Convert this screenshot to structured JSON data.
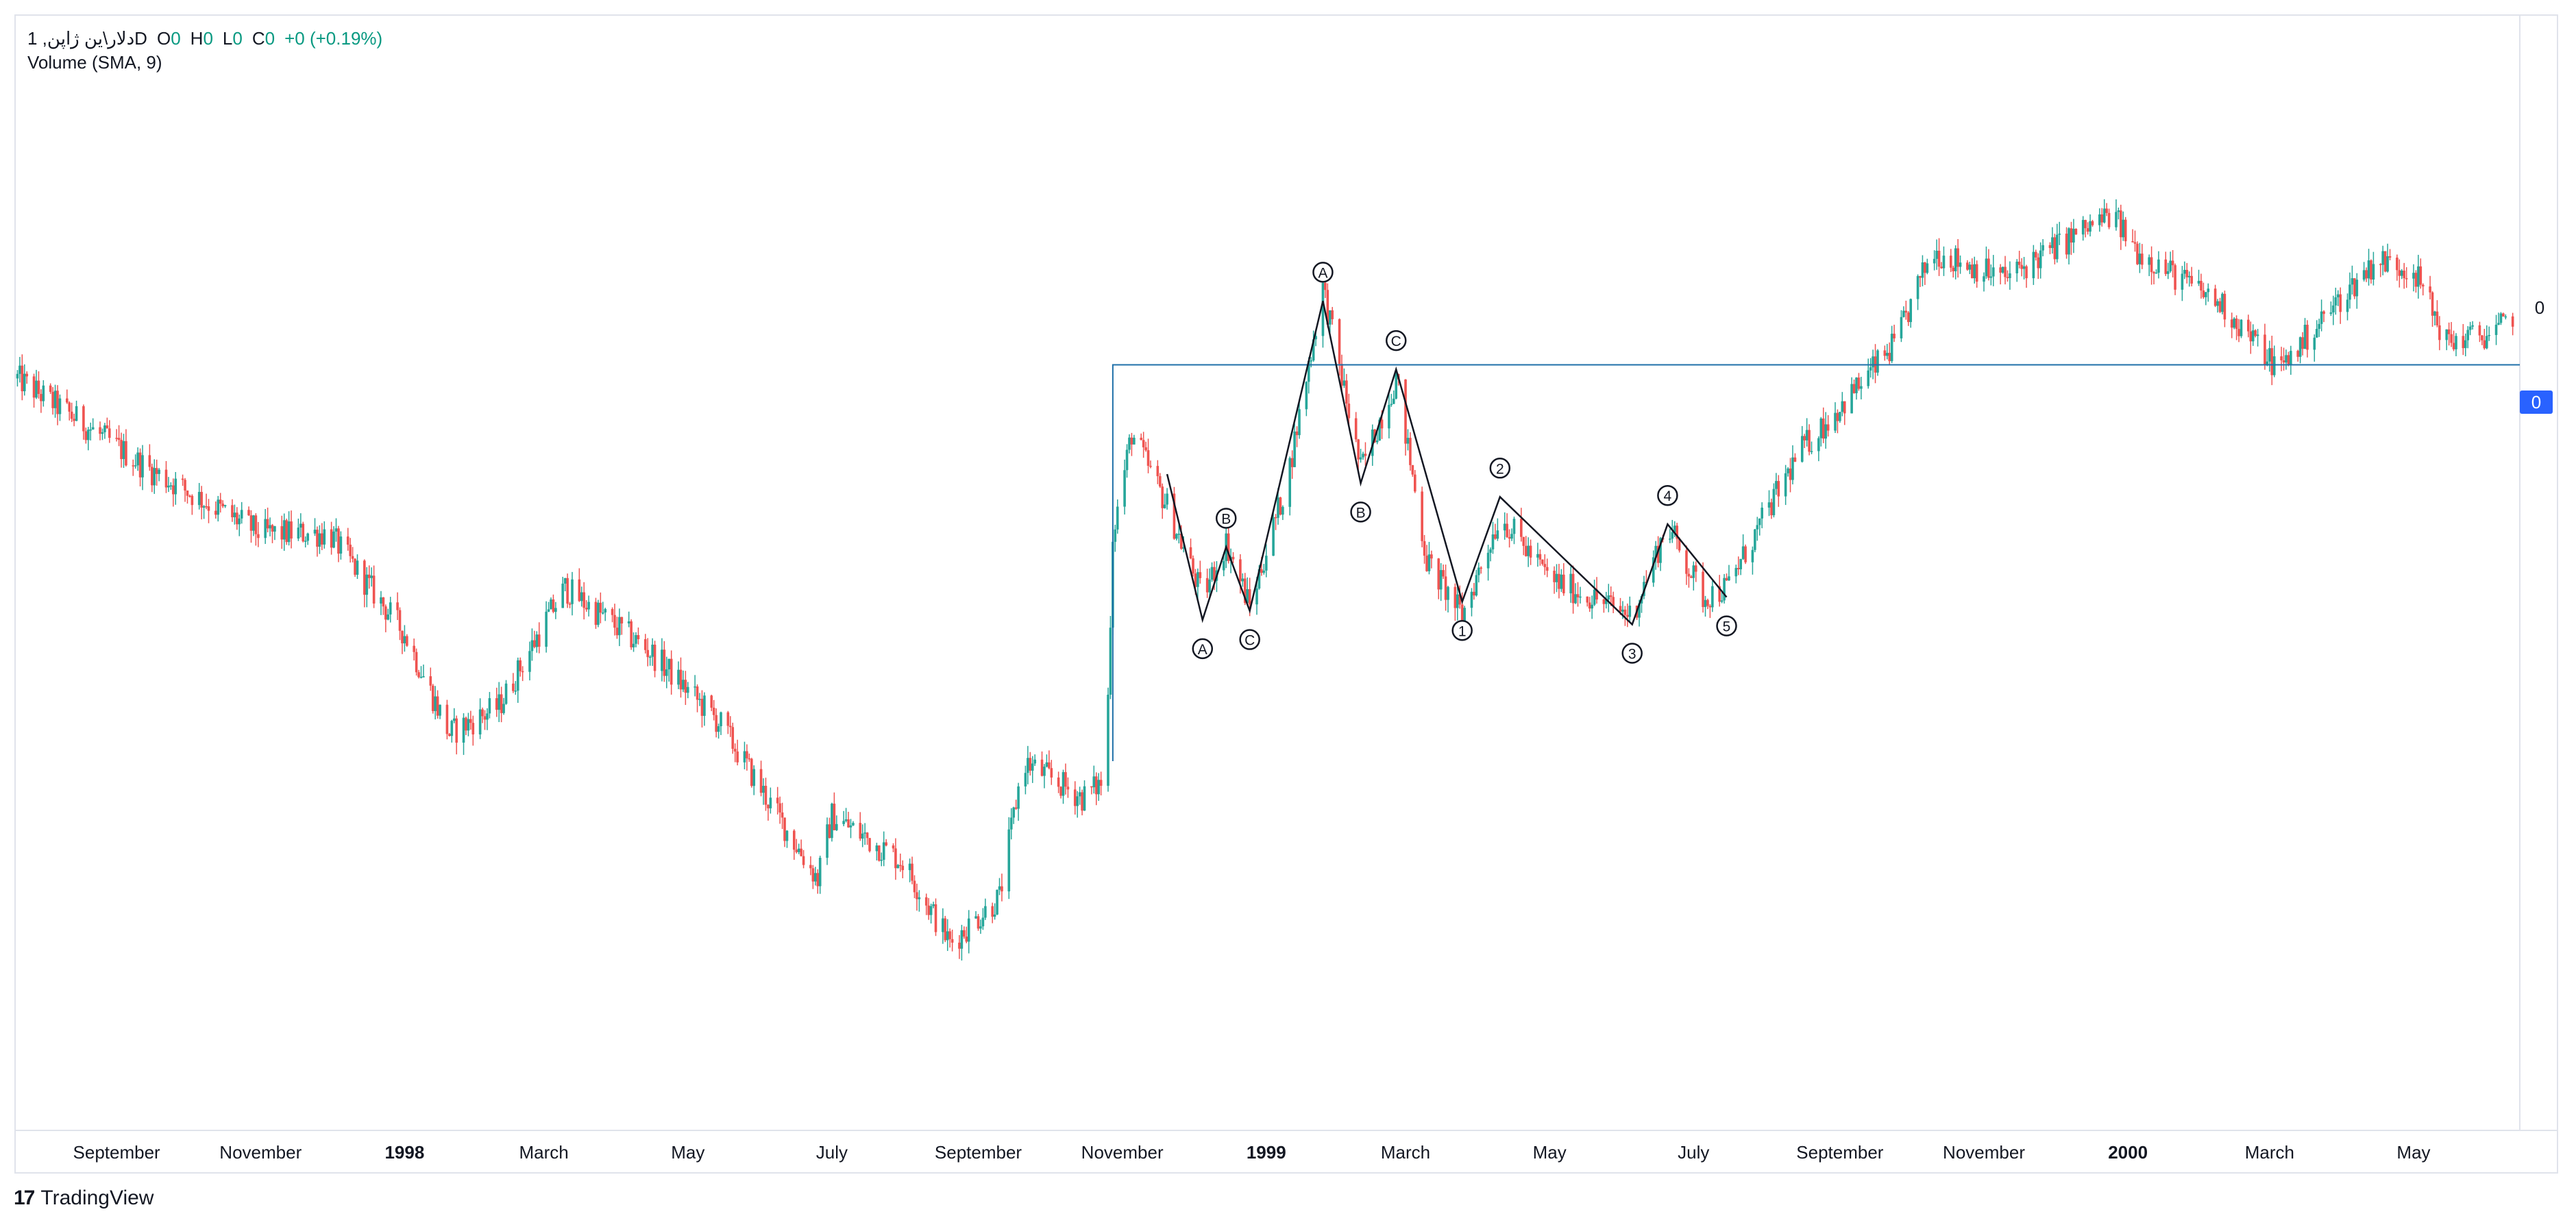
{
  "legend": {
    "symbol": "1 ,دلار\\ین ژاپنD",
    "o_label": "O",
    "o_value": "0",
    "h_label": "H",
    "h_value": "0",
    "l_label": "L",
    "l_value": "0",
    "c_label": "C",
    "c_value": "0",
    "change": "+0 (+0.19%)"
  },
  "volume_indicator": "Volume (SMA, 9)",
  "price_axis": {
    "current_price_label": "0",
    "line_price_label": "0"
  },
  "brand": {
    "logo": "17",
    "name": "TradingView"
  },
  "colors": {
    "up": "#26a69a",
    "down": "#ef5350",
    "line": "#1e6fa8",
    "badge": "#2962ff",
    "text": "#131722"
  },
  "chart_data": {
    "type": "candlestick",
    "interval": "1D",
    "x_tick_labels": [
      {
        "label": "September",
        "date": "1997-09",
        "bold": false
      },
      {
        "label": "November",
        "date": "1997-11",
        "bold": false
      },
      {
        "label": "1998",
        "date": "1998-01",
        "bold": true
      },
      {
        "label": "March",
        "date": "1998-03",
        "bold": false
      },
      {
        "label": "May",
        "date": "1998-05",
        "bold": false
      },
      {
        "label": "July",
        "date": "1998-07",
        "bold": false
      },
      {
        "label": "September",
        "date": "1998-09",
        "bold": false
      },
      {
        "label": "November",
        "date": "1998-11",
        "bold": false
      },
      {
        "label": "1999",
        "date": "1999-01",
        "bold": true
      },
      {
        "label": "March",
        "date": "1999-03",
        "bold": false
      },
      {
        "label": "May",
        "date": "1999-05",
        "bold": false
      },
      {
        "label": "July",
        "date": "1999-07",
        "bold": false
      },
      {
        "label": "September",
        "date": "1999-09",
        "bold": false
      },
      {
        "label": "November",
        "date": "1999-11",
        "bold": false
      },
      {
        "label": "2000",
        "date": "2000-01",
        "bold": true
      },
      {
        "label": "March",
        "date": "2000-03",
        "bold": false
      },
      {
        "label": "May",
        "date": "2000-05",
        "bold": false
      }
    ],
    "x_range": [
      "1997-07-20",
      "2000-06-15"
    ],
    "y_range": [
      0,
      100
    ],
    "price_path": [
      [
        "1997-07-21",
        72
      ],
      [
        "1997-09-15",
        62
      ],
      [
        "1997-11-01",
        55
      ],
      [
        "1997-11-30",
        55
      ],
      [
        "1998-01-01",
        44
      ],
      [
        "1998-01-20",
        33
      ],
      [
        "1998-02-10",
        36
      ],
      [
        "1998-03-01",
        45
      ],
      [
        "1998-03-10",
        49
      ],
      [
        "1998-04-15",
        42
      ],
      [
        "1998-05-15",
        34
      ],
      [
        "1998-06-25",
        17
      ],
      [
        "1998-07-01",
        24
      ],
      [
        "1998-07-31",
        19
      ],
      [
        "1998-08-20",
        10
      ],
      [
        "1998-09-10",
        15
      ],
      [
        "1998-09-20",
        30
      ],
      [
        "1998-10-15",
        26
      ],
      [
        "1998-10-25",
        28
      ],
      [
        "1998-10-28",
        55
      ],
      [
        "1998-11-05",
        66
      ],
      [
        "1998-11-20",
        58
      ],
      [
        "1998-12-05",
        48
      ],
      [
        "1998-12-15",
        54
      ],
      [
        "1998-12-25",
        47
      ],
      [
        "1999-01-10",
        61
      ],
      [
        "1999-01-25",
        82
      ],
      [
        "1999-02-10",
        62
      ],
      [
        "1999-02-25",
        72
      ],
      [
        "1999-03-10",
        52
      ],
      [
        "1999-03-25",
        46
      ],
      [
        "1999-04-10",
        57
      ],
      [
        "1999-05-01",
        50
      ],
      [
        "1999-06-05",
        46
      ],
      [
        "1999-06-20",
        56
      ],
      [
        "1999-07-05",
        48
      ],
      [
        "1999-07-15",
        49
      ],
      [
        "1999-08-15",
        64
      ],
      [
        "1999-09-05",
        70
      ],
      [
        "1999-09-25",
        76
      ],
      [
        "1999-10-10",
        86
      ],
      [
        "1999-11-10",
        83
      ],
      [
        "1999-12-05",
        87
      ],
      [
        "1999-12-25",
        90
      ],
      [
        "2000-01-05",
        86
      ],
      [
        "2000-02-10",
        80
      ],
      [
        "2000-03-05",
        73
      ],
      [
        "2000-03-25",
        79
      ],
      [
        "2000-04-15",
        85
      ],
      [
        "2000-05-01",
        84
      ],
      [
        "2000-05-15",
        76
      ],
      [
        "2000-06-05",
        77
      ],
      [
        "2000-06-12",
        79
      ]
    ],
    "horizontal_line": {
      "start_date": "1998-10-28",
      "y": 73.5
    },
    "elliott_waves": [
      {
        "label": "A",
        "date": "1998-12-05",
        "y": 45.5,
        "label_pos": "below"
      },
      {
        "label": "B",
        "date": "1998-12-15",
        "y": 53.5,
        "label_pos": "above"
      },
      {
        "label": "C",
        "date": "1998-12-25",
        "y": 46.5,
        "label_pos": "below"
      },
      {
        "label": "A",
        "date": "1999-01-25",
        "y": 80.5,
        "label_pos": "above"
      },
      {
        "label": "B",
        "date": "1999-02-10",
        "y": 60.5,
        "label_pos": "below"
      },
      {
        "label": "C",
        "date": "1999-02-25",
        "y": 73.0,
        "label_pos": "above"
      },
      {
        "label": "1",
        "date": "1999-03-25",
        "y": 47.5,
        "label_pos": "below"
      },
      {
        "label": "2",
        "date": "1999-04-10",
        "y": 59.0,
        "label_pos": "above"
      },
      {
        "label": "3",
        "date": "1999-06-05",
        "y": 45.0,
        "label_pos": "below"
      },
      {
        "label": "4",
        "date": "1999-06-20",
        "y": 56.0,
        "label_pos": "above"
      },
      {
        "label": "5",
        "date": "1999-07-15",
        "y": 48.0,
        "label_pos": "below"
      }
    ],
    "wave_lines": [
      [
        "1998-11-20",
        61.5
      ],
      [
        "1998-12-05",
        45.5
      ],
      [
        "1998-12-15",
        53.5
      ],
      [
        "1998-12-25",
        46.5
      ],
      [
        "1999-01-25",
        80.5
      ],
      [
        "1999-02-10",
        60.5
      ],
      [
        "1999-02-25",
        73.0
      ],
      [
        "1999-03-25",
        47.5
      ],
      [
        "1999-04-10",
        59.0
      ],
      [
        "1999-06-05",
        45.0
      ],
      [
        "1999-06-20",
        56.0
      ],
      [
        "1999-07-15",
        48.0
      ]
    ]
  }
}
